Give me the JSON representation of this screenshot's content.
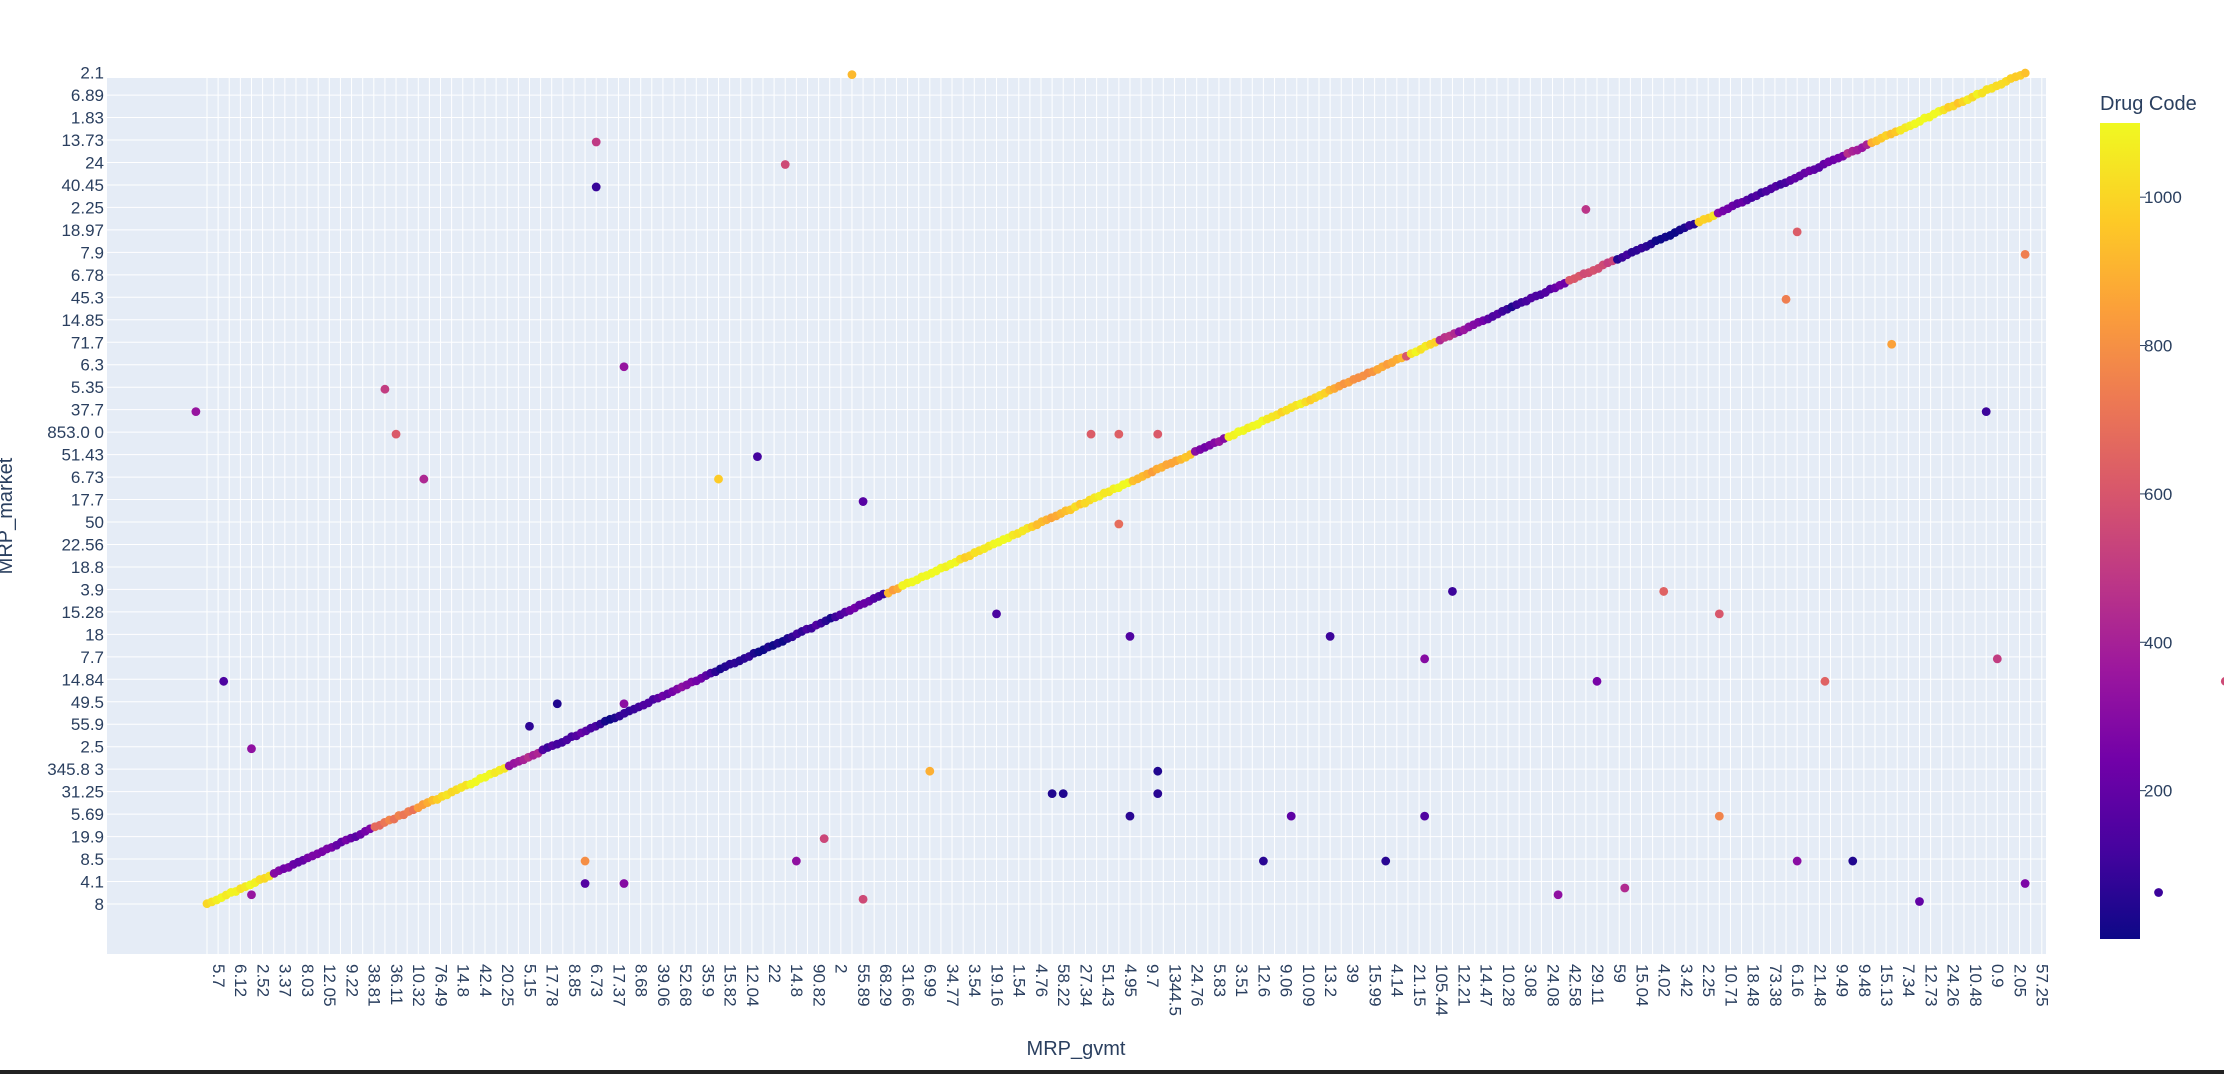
{
  "chart_data": {
    "type": "scatter",
    "xlabel": "MRP_gvmt",
    "ylabel": "MRP_market",
    "color_label": "Drug Code",
    "x_categories": [
      "5.7",
      "6.12",
      "2.52",
      "3.37",
      "8.03",
      "12.05",
      "9.22",
      "38.81",
      "36.11",
      "10.32",
      "76.49",
      "14.8",
      "42.4",
      "20.25",
      "5.15",
      "17.78",
      "8.85",
      "6.73",
      "17.37",
      "8.68",
      "39.06",
      "52.68",
      "35.9",
      "15.82",
      "12.04",
      "22",
      "14.8",
      "90.82",
      "2",
      "55.89",
      "68.29",
      "31.66",
      "6.99",
      "34.77",
      "3.54",
      "19.16",
      "1.54",
      "4.76",
      "58.22",
      "27.34",
      "51.43",
      "4.95",
      "9.7",
      "1344.5",
      "24.76",
      "5.83",
      "3.51",
      "12.6",
      "9.06",
      "10.09",
      "13.2",
      "39",
      "15.99",
      "4.14",
      "21.15",
      "105.44",
      "12.21",
      "14.47",
      "10.28",
      "3.08",
      "24.08",
      "42.58",
      "29.11",
      "59",
      "15.04",
      "4.02",
      "3.42",
      "2.25",
      "10.71",
      "18.48",
      "73.38",
      "6.16",
      "21.48",
      "9.49",
      "9.48",
      "15.13",
      "7.34",
      "12.73",
      "24.26",
      "10.48",
      "0.9",
      "2.05",
      "57.25"
    ],
    "y_categories": [
      "8",
      "4.1",
      "8.5",
      "19.9",
      "5.69",
      "31.25",
      "345.8 3",
      "2.5",
      "55.9",
      "49.5",
      "14.84",
      "7.7",
      "18",
      "15.28",
      "3.9",
      "18.8",
      "22.56",
      "50",
      "17.7",
      "6.73",
      "51.43",
      "853.0 0",
      "37.7",
      "5.35",
      "6.3",
      "71.7",
      "14.85",
      "45.3",
      "6.78",
      "7.9",
      "18.97",
      "2.25",
      "40.45",
      "24",
      "13.73",
      "1.83",
      "6.89",
      "2.1"
    ],
    "color_range": [
      0,
      1100
    ],
    "colorbar_ticks": [
      "200",
      "400",
      "600",
      "800",
      "1000"
    ],
    "colorscale": [
      "#0d0887",
      "#46039f",
      "#7201a8",
      "#9c179e",
      "#bd3786",
      "#d8576b",
      "#ed7953",
      "#fb9f3a",
      "#fdca26",
      "#f0f921"
    ],
    "plot_bg": "#e5ecf6",
    "grid": true,
    "diagonal_trend": {
      "from": [
        0,
        0
      ],
      "to": [
        82,
        37
      ],
      "note": "most points fall on the line where MRP_market equals MRP_gvmt"
    },
    "off_diagonal_points": [
      [
        0,
        22,
        350
      ],
      [
        1,
        10,
        140
      ],
      [
        2,
        7,
        330
      ],
      [
        2,
        0.5,
        350
      ],
      [
        8,
        23,
        510
      ],
      [
        9,
        21,
        620
      ],
      [
        10,
        19,
        430
      ],
      [
        15,
        8,
        70
      ],
      [
        16,
        9,
        40
      ],
      [
        17,
        2,
        800
      ],
      [
        17,
        1,
        160
      ],
      [
        18,
        34,
        500
      ],
      [
        18,
        32,
        90
      ],
      [
        19,
        24,
        350
      ],
      [
        19,
        9,
        320
      ],
      [
        19,
        1,
        300
      ],
      [
        23,
        19,
        980
      ],
      [
        25,
        20,
        120
      ],
      [
        26,
        33,
        560
      ],
      [
        27,
        2,
        330
      ],
      [
        28,
        3,
        550
      ],
      [
        29,
        37,
        930
      ],
      [
        30,
        18,
        170
      ],
      [
        30,
        0.3,
        560
      ],
      [
        33,
        6,
        900
      ],
      [
        36,
        13,
        130
      ],
      [
        38,
        5,
        40
      ],
      [
        39,
        5,
        40
      ],
      [
        40,
        21,
        630
      ],
      [
        41,
        17,
        690
      ],
      [
        41,
        21,
        640
      ],
      [
        42,
        4,
        60
      ],
      [
        42,
        12,
        150
      ],
      [
        43,
        5,
        60
      ],
      [
        43,
        21,
        620
      ],
      [
        43,
        6,
        40
      ],
      [
        48,
        2,
        60
      ],
      [
        49,
        4,
        190
      ],
      [
        51,
        12,
        100
      ],
      [
        53,
        2,
        60
      ],
      [
        55,
        4,
        150
      ],
      [
        55,
        11,
        300
      ],
      [
        56,
        14,
        100
      ],
      [
        61,
        0.5,
        330
      ],
      [
        62,
        31,
        480
      ],
      [
        63,
        10,
        260
      ],
      [
        64,
        0.8,
        440
      ],
      [
        66,
        14,
        650
      ],
      [
        68,
        4,
        770
      ],
      [
        68,
        13,
        610
      ],
      [
        71,
        27,
        750
      ],
      [
        72,
        30,
        630
      ],
      [
        72,
        2,
        310
      ],
      [
        73,
        10,
        650
      ],
      [
        74,
        2,
        40
      ],
      [
        76,
        25,
        860
      ],
      [
        77,
        0.2,
        200
      ],
      [
        80,
        22,
        100
      ],
      [
        81,
        11,
        510
      ],
      [
        82,
        29,
        750
      ],
      [
        82,
        1,
        270
      ],
      [
        87,
        0.5,
        330
      ],
      [
        88,
        0.6,
        100
      ],
      [
        91,
        10,
        560
      ],
      [
        92,
        16,
        650
      ]
    ]
  }
}
